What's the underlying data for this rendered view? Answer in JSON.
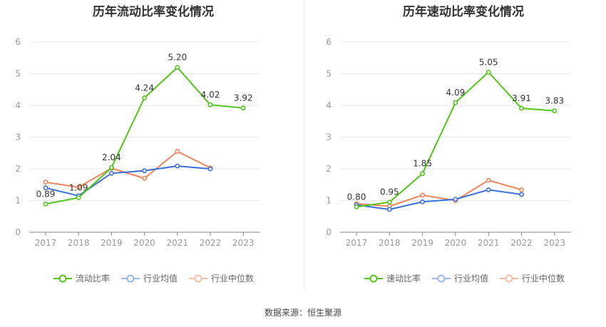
{
  "source": "数据来源：恒生聚源",
  "colors": {
    "main": "#52c41a",
    "avg": "#3d6fd8",
    "median": "#f0845a",
    "axis": "#999999",
    "grid": "#e8e8e8",
    "label": "#333333"
  },
  "chart_data": [
    {
      "type": "line",
      "title": "历年流动比率变化情况",
      "categories": [
        "2017",
        "2018",
        "2019",
        "2020",
        "2021",
        "2022",
        "2023"
      ],
      "ylim": [
        0,
        6
      ],
      "yticks": [
        "0",
        "1",
        "2",
        "3",
        "4",
        "5",
        "6"
      ],
      "grid": true,
      "legend_position": "bottom",
      "series": [
        {
          "name": "流动比率",
          "values": [
            0.89,
            1.09,
            2.04,
            4.24,
            5.2,
            4.02,
            3.92
          ],
          "labels": [
            "0.89",
            "1.09",
            "2.04",
            "4.24",
            "5.20",
            "4.02",
            "3.92"
          ]
        },
        {
          "name": "行业均值",
          "values": [
            1.4,
            1.15,
            1.86,
            1.94,
            2.09,
            2.0,
            null
          ]
        },
        {
          "name": "行业中位数",
          "values": [
            1.58,
            1.42,
            2.02,
            1.7,
            2.55,
            2.03,
            null
          ]
        }
      ]
    },
    {
      "type": "line",
      "title": "历年速动比率变化情况",
      "categories": [
        "2017",
        "2018",
        "2019",
        "2020",
        "2021",
        "2022",
        "2023"
      ],
      "ylim": [
        0,
        6
      ],
      "yticks": [
        "0",
        "1",
        "2",
        "3",
        "4",
        "5",
        "6"
      ],
      "grid": true,
      "legend_position": "bottom",
      "series": [
        {
          "name": "速动比率",
          "values": [
            0.8,
            0.95,
            1.85,
            4.09,
            5.05,
            3.91,
            3.83
          ],
          "labels": [
            "0.80",
            "0.95",
            "1.85",
            "4.09",
            "5.05",
            "3.91",
            "3.83"
          ]
        },
        {
          "name": "行业均值",
          "values": [
            0.86,
            0.72,
            0.96,
            1.04,
            1.34,
            1.19,
            null
          ]
        },
        {
          "name": "行业中位数",
          "values": [
            0.9,
            0.82,
            1.17,
            1.0,
            1.64,
            1.34,
            null
          ]
        }
      ]
    }
  ]
}
